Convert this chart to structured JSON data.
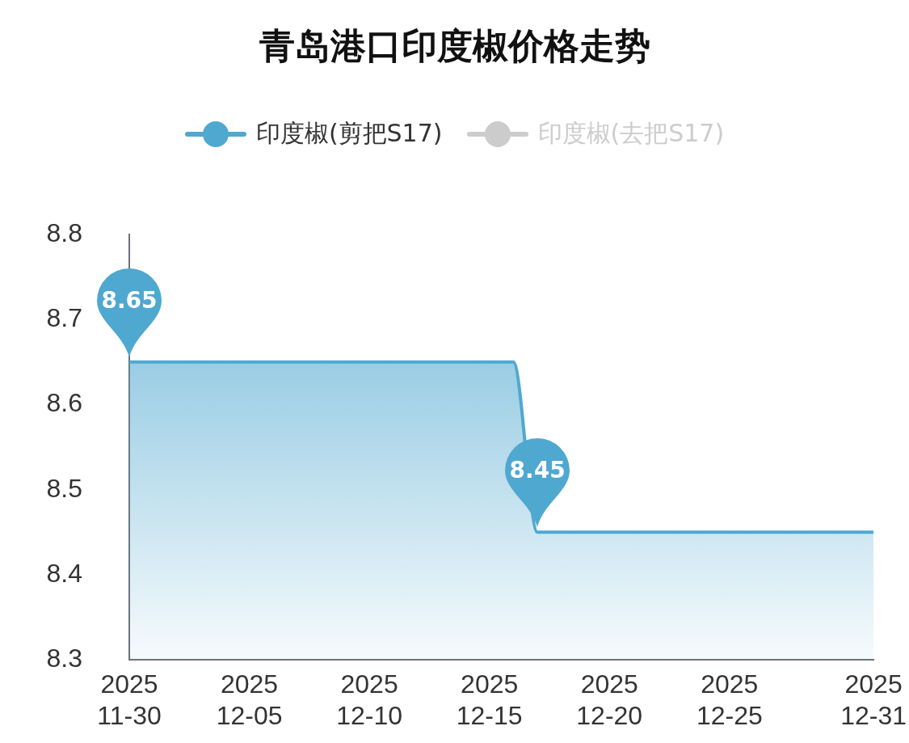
{
  "chart_data": {
    "type": "area",
    "title": "青岛港口印度椒价格走势",
    "x": [
      "2025-11-30",
      "2025-12-16",
      "2025-12-17",
      "2025-12-31"
    ],
    "series": [
      {
        "name": "印度椒(剪把S17)",
        "color": "#4fa8d0",
        "values": [
          8.65,
          8.65,
          8.45,
          8.45
        ]
      },
      {
        "name": "印度椒(去把S17)",
        "color": "#cccccc",
        "values": [
          null,
          null,
          null,
          null
        ]
      }
    ],
    "ylim": [
      8.3,
      8.8
    ],
    "yticks": [
      8.3,
      8.4,
      8.5,
      8.6,
      8.7,
      8.8
    ],
    "xlim": [
      "2025-11-30",
      "2025-12-31"
    ],
    "xticks": [
      {
        "value": "2025-11-30",
        "label": "2025\n11-30"
      },
      {
        "value": "2025-12-05",
        "label": "2025\n12-05"
      },
      {
        "value": "2025-12-10",
        "label": "2025\n12-10"
      },
      {
        "value": "2025-12-15",
        "label": "2025\n12-15"
      },
      {
        "value": "2025-12-20",
        "label": "2025\n12-20"
      },
      {
        "value": "2025-12-25",
        "label": "2025\n12-25"
      },
      {
        "value": "2025-12-31",
        "label": "2025\n12-31"
      }
    ],
    "annotations": [
      {
        "text": "8.65",
        "x": "2025-11-30",
        "y": 8.65
      },
      {
        "text": "8.45",
        "x": "2025-12-17",
        "y": 8.45
      }
    ],
    "grid": false,
    "legend": "top",
    "marker": "none"
  }
}
